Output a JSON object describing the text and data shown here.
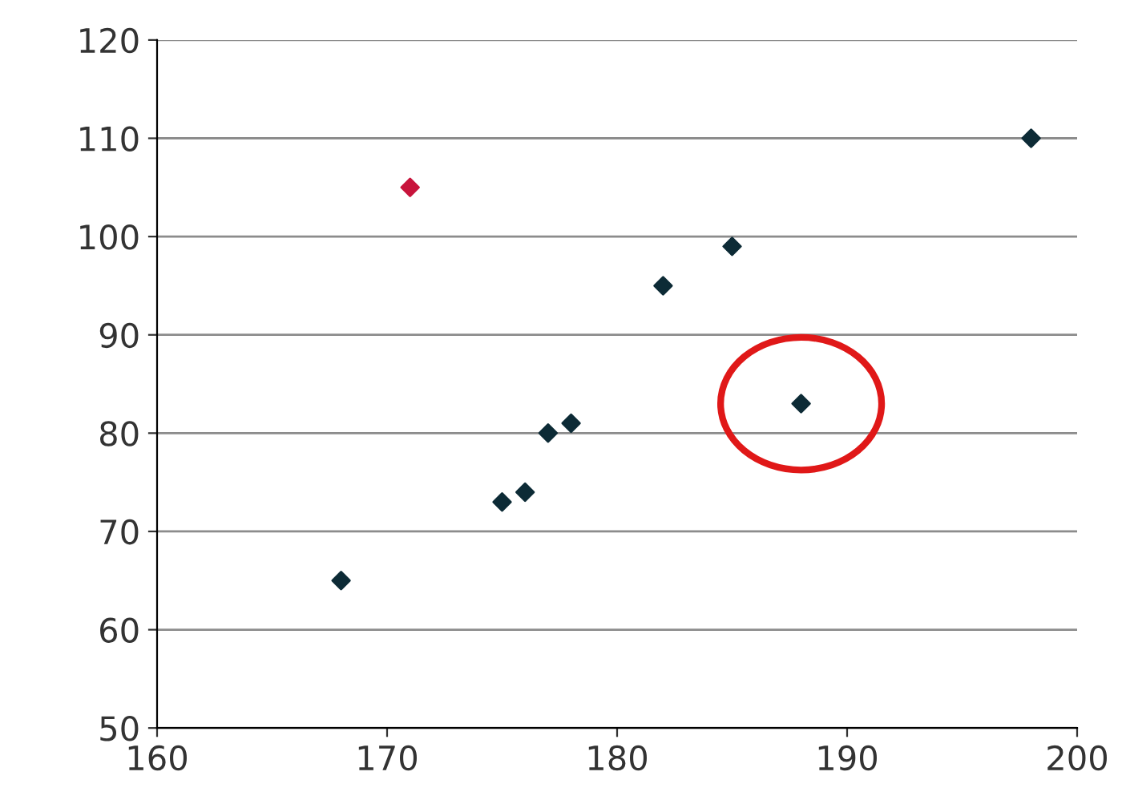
{
  "chart_data": {
    "type": "scatter",
    "x": [
      168,
      171,
      175,
      176,
      177,
      178,
      182,
      185,
      188,
      198
    ],
    "values": [
      65,
      105,
      73,
      74,
      80,
      81,
      95,
      99,
      83,
      110
    ],
    "colors": [
      "#0d2b36",
      "#c8143c",
      "#0d2b36",
      "#0d2b36",
      "#0d2b36",
      "#0d2b36",
      "#0d2b36",
      "#0d2b36",
      "#0d2b36",
      "#0d2b36"
    ],
    "marker": "diamond",
    "xlim": [
      160,
      200
    ],
    "xticks": [
      160,
      170,
      180,
      190,
      200
    ],
    "ylim": [
      50,
      120
    ],
    "yticks": [
      50,
      60,
      70,
      80,
      90,
      100,
      110,
      120
    ],
    "grid": "y"
  }
}
